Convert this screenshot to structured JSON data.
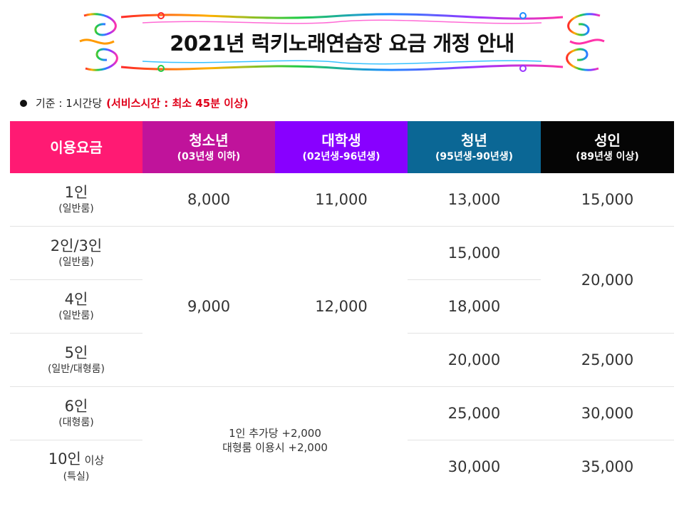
{
  "title": "2021년 럭키노래연습장 요금 개정 안내",
  "note": {
    "prefix": "기준 : 1시간당",
    "highlight": "(서비스시간 : 최소 45분 이상)"
  },
  "headers": [
    {
      "main": "이용요금",
      "sub": ""
    },
    {
      "main": "청소년",
      "sub": "(03년생 이하)"
    },
    {
      "main": "대학생",
      "sub": "(02년생-96년생)"
    },
    {
      "main": "청년",
      "sub": "(95년생-90년생)"
    },
    {
      "main": "성인",
      "sub": "(89년생 이상)"
    }
  ],
  "rows": [
    {
      "main": "1인",
      "suffix": "",
      "sub": "(일반룸)"
    },
    {
      "main": "2인/3인",
      "suffix": "",
      "sub": "(일반룸)"
    },
    {
      "main": "4인",
      "suffix": "",
      "sub": "(일반룸)"
    },
    {
      "main": "5인",
      "suffix": "",
      "sub": "(일반/대형룸)"
    },
    {
      "main": "6인",
      "suffix": "",
      "sub": "(대형룸)"
    },
    {
      "main": "10인",
      "suffix": " 이상",
      "sub": "(특실)"
    }
  ],
  "prices": {
    "teen_1": "8,000",
    "teen_group": "9,000",
    "college_1": "11,000",
    "college_group": "12,000",
    "youth": [
      "13,000",
      "15,000",
      "18,000",
      "20,000",
      "25,000",
      "30,000"
    ],
    "adult_1": "15,000",
    "adult_2_4": "20,000",
    "adult_5": "25,000",
    "adult_6": "30,000",
    "adult_10": "35,000"
  },
  "extra_note": {
    "line1": "1인 추가당 +2,000",
    "line2": "대형룸 이용시 +2,000"
  },
  "colors": {
    "header_fee": "#ff1a73",
    "header_teen": "#c0139b",
    "header_college": "#8800ff",
    "header_youth": "#0b6795",
    "header_adult": "#050505",
    "note_highlight": "#e0001a"
  }
}
